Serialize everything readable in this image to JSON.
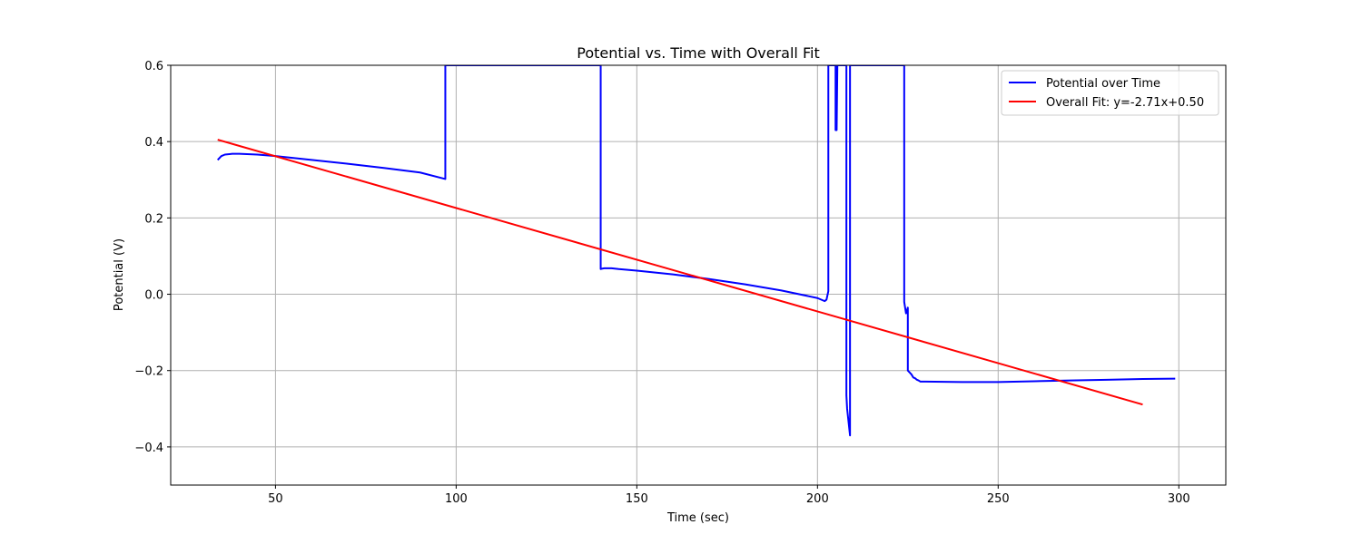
{
  "chart_data": {
    "type": "line",
    "title": "Potential vs. Time with Overall Fit",
    "xlabel": "Time (sec)",
    "ylabel": "Potential (V)",
    "xlim": [
      21,
      313
    ],
    "ylim": [
      -0.5,
      0.6
    ],
    "xticks": [
      50,
      100,
      150,
      200,
      250,
      300
    ],
    "yticks": [
      -0.4,
      -0.2,
      0.0,
      0.2,
      0.4,
      0.6
    ],
    "ytick_labels": [
      "−0.4",
      "−0.2",
      "0.0",
      "0.2",
      "0.4",
      "0.6"
    ],
    "grid": true,
    "legend_position": "top-right",
    "series": [
      {
        "name": "Potential over Time",
        "color": "#0000ff",
        "x": [
          34,
          35,
          36,
          38,
          40,
          45,
          50,
          60,
          70,
          80,
          90,
          97,
          97,
          97.3,
          140,
          140,
          140.3,
          141,
          143,
          145,
          150,
          160,
          170,
          180,
          190,
          200,
          202,
          202.5,
          203,
          203,
          203.3,
          205,
          205,
          205.3,
          205.5,
          205.5,
          208,
          208,
          208.2,
          209,
          209,
          209.3,
          224,
          224,
          224.5,
          225,
          225,
          225.5,
          226,
          226.5,
          227,
          227.5,
          228,
          228.5,
          230,
          240,
          250,
          260,
          270,
          280,
          290,
          299
        ],
        "y": [
          0.352,
          0.362,
          0.366,
          0.368,
          0.368,
          0.366,
          0.362,
          0.352,
          0.342,
          0.331,
          0.319,
          0.302,
          0.6,
          0.6,
          0.6,
          0.066,
          0.067,
          0.068,
          0.068,
          0.066,
          0.062,
          0.052,
          0.04,
          0.026,
          0.01,
          -0.01,
          -0.018,
          -0.014,
          0.008,
          0.6,
          0.6,
          0.6,
          0.43,
          0.43,
          0.6,
          0.6,
          0.6,
          -0.265,
          -0.3,
          -0.37,
          0.6,
          0.6,
          0.6,
          -0.02,
          -0.05,
          -0.035,
          -0.2,
          -0.205,
          -0.21,
          -0.218,
          -0.22,
          -0.224,
          -0.226,
          -0.229,
          -0.229,
          -0.23,
          -0.23,
          -0.228,
          -0.226,
          -0.224,
          -0.222,
          -0.221
        ]
      },
      {
        "name": "Overall Fit: y=-2.71x+0.50",
        "color": "#ff0000",
        "x": [
          34,
          290
        ],
        "y": [
          0.405,
          -0.289
        ]
      }
    ]
  }
}
